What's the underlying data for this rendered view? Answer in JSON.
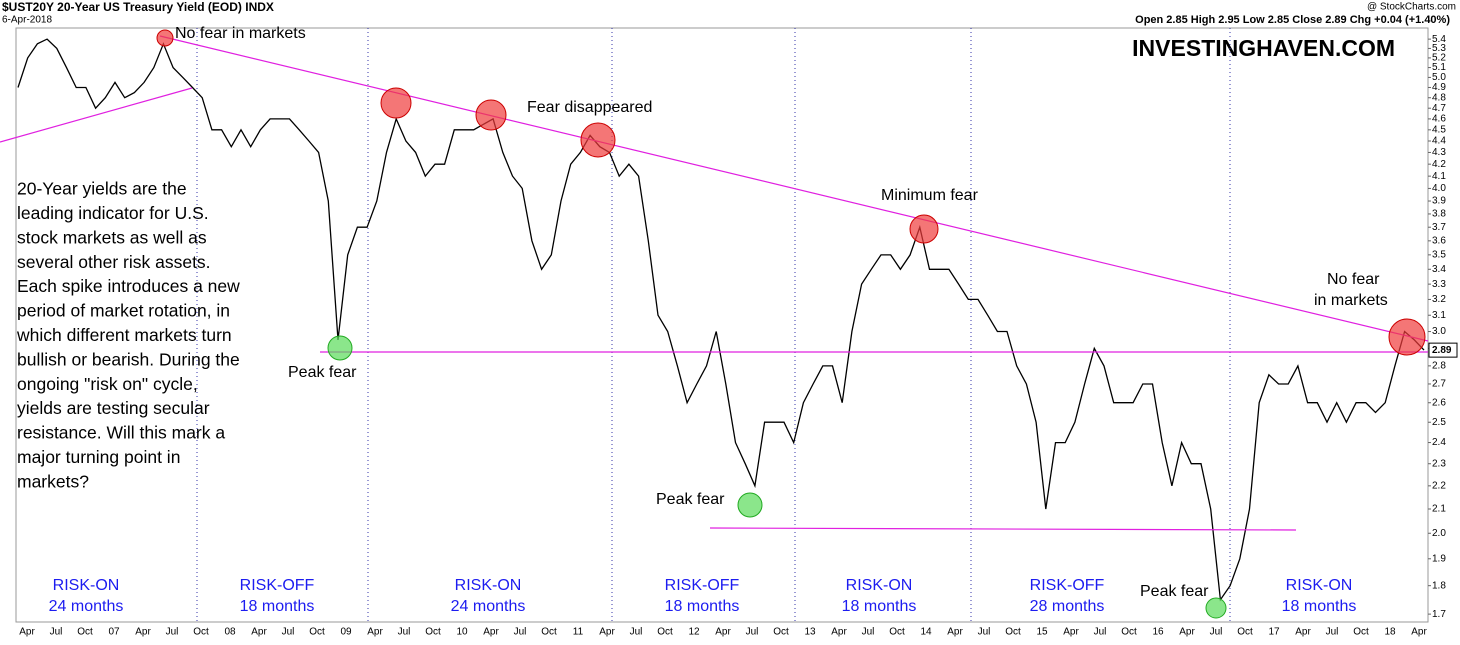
{
  "chart_data": {
    "type": "line",
    "title": "$UST20Y 20-Year US Treasury Yield (EOD) INDX",
    "subtitle": "6-Apr-2018",
    "quote": "Open 2.85 High 2.95 Low 2.85 Close 2.89 Chg +0.04 (+1.40%)",
    "source": "@ StockCharts.com",
    "watermark": "INVESTINGHAVEN.COM",
    "last_label": "2.89",
    "log_scale": true,
    "color": "#000000",
    "ylim": [
      1.68,
      5.5
    ],
    "yticks": [
      1.7,
      1.8,
      1.9,
      {
        "value": 2,
        "label": "2.0"
      },
      2.1,
      2.2,
      2.3,
      2.4,
      2.5,
      2.6,
      2.7,
      2.8,
      2.9,
      {
        "value": 3,
        "label": "3.0"
      },
      3.1,
      3.2,
      3.3,
      3.4,
      3.5,
      3.6,
      3.7,
      3.8,
      3.9,
      {
        "value": 4,
        "label": "4.0"
      },
      4.1,
      4.2,
      4.3,
      4.4,
      4.5,
      4.6,
      4.7,
      4.8,
      4.9,
      {
        "value": 5,
        "label": "5.0"
      },
      5.1,
      5.2,
      5.3,
      5.4
    ],
    "xtick_labels": [
      "Apr",
      "Jul",
      "Oct",
      "07",
      "Apr",
      "Jul",
      "Oct",
      "08",
      "Apr",
      "Jul",
      "Oct",
      "09",
      "Apr",
      "Jul",
      "Oct",
      "10",
      "Apr",
      "Jul",
      "Oct",
      "11",
      "Apr",
      "Jul",
      "Oct",
      "12",
      "Apr",
      "Jul",
      "Oct",
      "13",
      "Apr",
      "Jul",
      "Oct",
      "14",
      "Apr",
      "Jul",
      "Oct",
      "15",
      "Apr",
      "Jul",
      "Oct",
      "16",
      "Apr",
      "Jul",
      "Oct",
      "17",
      "Apr",
      "Jul",
      "Oct",
      "18",
      "Apr"
    ],
    "values": [
      4.9,
      5.2,
      5.35,
      5.4,
      5.3,
      5.1,
      4.9,
      4.9,
      4.7,
      4.8,
      4.95,
      4.8,
      4.85,
      4.95,
      5.1,
      5.35,
      5.1,
      5.0,
      4.9,
      4.8,
      4.5,
      4.5,
      4.35,
      4.5,
      4.35,
      4.5,
      4.6,
      4.6,
      4.6,
      4.5,
      4.4,
      4.3,
      3.9,
      2.95,
      3.5,
      3.7,
      3.7,
      3.9,
      4.3,
      4.6,
      4.4,
      4.3,
      4.1,
      4.2,
      4.2,
      4.5,
      4.5,
      4.5,
      4.55,
      4.6,
      4.3,
      4.1,
      4.0,
      3.6,
      3.4,
      3.5,
      3.9,
      4.2,
      4.3,
      4.45,
      4.35,
      4.3,
      4.1,
      4.2,
      4.1,
      3.6,
      3.1,
      3.0,
      2.8,
      2.6,
      2.7,
      2.8,
      3.0,
      2.7,
      2.4,
      2.3,
      2.2,
      2.5,
      2.5,
      2.5,
      2.4,
      2.6,
      2.7,
      2.8,
      2.8,
      2.6,
      3.0,
      3.3,
      3.4,
      3.5,
      3.5,
      3.4,
      3.5,
      3.7,
      3.4,
      3.4,
      3.4,
      3.3,
      3.2,
      3.2,
      3.1,
      3.0,
      3.0,
      2.8,
      2.7,
      2.5,
      2.1,
      2.4,
      2.4,
      2.5,
      2.7,
      2.9,
      2.8,
      2.6,
      2.6,
      2.6,
      2.7,
      2.7,
      2.4,
      2.2,
      2.4,
      2.3,
      2.3,
      2.1,
      1.75,
      1.8,
      1.9,
      2.1,
      2.6,
      2.75,
      2.7,
      2.7,
      2.8,
      2.6,
      2.6,
      2.5,
      2.6,
      2.5,
      2.6,
      2.6,
      2.55,
      2.6,
      2.8,
      3.0,
      2.95,
      2.89
    ],
    "annotations": [
      [
        "No fear in markets"
      ],
      [
        "Fear disappeared"
      ],
      [
        "Minimum fear"
      ],
      [
        "No fear",
        "in markets"
      ],
      [
        "Peak fear"
      ],
      [
        "Peak fear"
      ],
      [
        "Peak fear"
      ]
    ],
    "regimes": [
      [
        "RISK-ON",
        "24 months"
      ],
      [
        "RISK-OFF",
        "18 months"
      ],
      [
        "RISK-ON",
        "24 months"
      ],
      [
        "RISK-OFF",
        "18 months"
      ],
      [
        "RISK-ON",
        "18 months"
      ],
      [
        "RISK-OFF",
        "28 months"
      ],
      [
        "RISK-ON",
        "18 months"
      ]
    ],
    "commentary": [
      "20-Year yields are the",
      "leading indicator for U.S.",
      "stock markets as well as",
      "several other risk assets.",
      "Each spike introduces a new",
      "period of market rotation, in",
      "which different markets turn",
      "bullish or bearish. During the",
      "ongoing \"risk on\" cycle,",
      "yields are testing secular",
      "resistance. Will this mark a",
      "major turning point in",
      "markets?"
    ]
  }
}
